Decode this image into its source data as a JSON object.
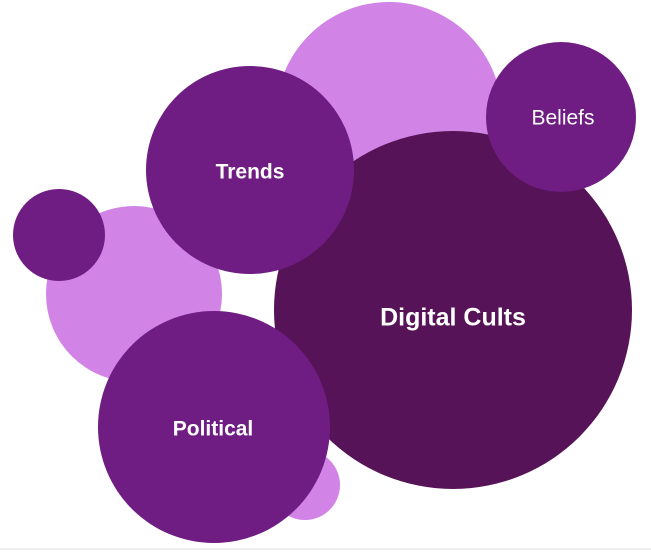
{
  "diagram": {
    "colors": {
      "light": "#d183e6",
      "medium": "#6f1c83",
      "dark": "#561357",
      "label": "#ffffff"
    },
    "bubbles": [
      {
        "name": "bubble-top-light",
        "tone": "light",
        "label": ""
      },
      {
        "name": "bubble-left-light",
        "tone": "light",
        "label": ""
      },
      {
        "name": "bubble-bottom-light",
        "tone": "light",
        "label": ""
      },
      {
        "name": "bubble-digital-cults",
        "tone": "dark",
        "label": "Digital Cults"
      },
      {
        "name": "bubble-trends",
        "tone": "medium",
        "label": "Trends"
      },
      {
        "name": "bubble-beliefs",
        "tone": "medium",
        "label": "Beliefs"
      },
      {
        "name": "bubble-small-left",
        "tone": "medium",
        "label": ""
      },
      {
        "name": "bubble-political",
        "tone": "medium",
        "label": "Political"
      }
    ]
  }
}
